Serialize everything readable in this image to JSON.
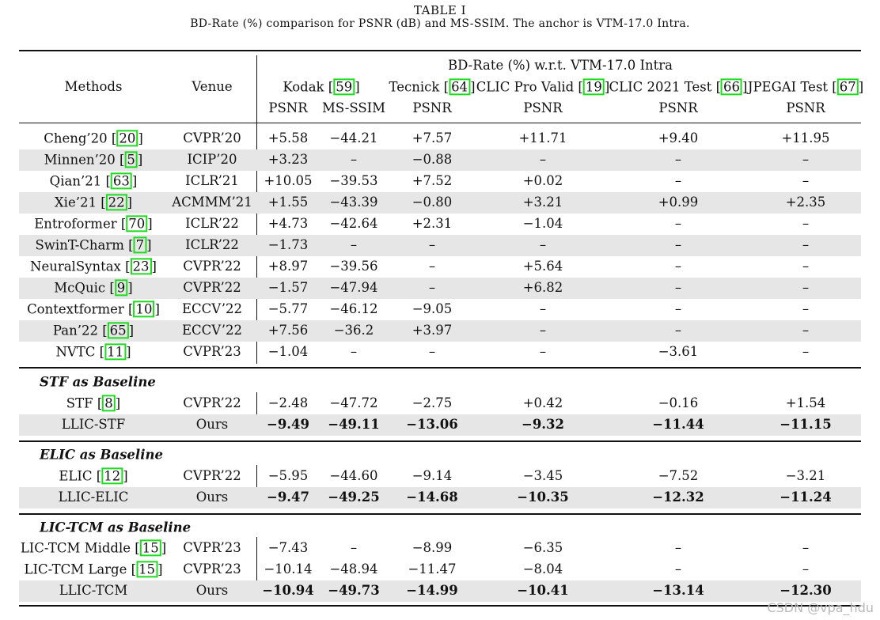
{
  "caption": {
    "title": "TABLE I",
    "subtitle": "BD-Rate (%) comparison for PSNR (dB) and MS-SSIM. The anchor is VTM-17.0 Intra."
  },
  "header": {
    "methods": "Methods",
    "venue": "Venue",
    "group_title": "BD-Rate (%) w.r.t. VTM-17.0 Intra",
    "datasets": [
      {
        "name": "Kodak",
        "ref": "59"
      },
      {
        "name": "Tecnick",
        "ref": "64"
      },
      {
        "name": "CLIC Pro Valid",
        "ref": "19"
      },
      {
        "name": "CLIC 2021 Test",
        "ref": "66"
      },
      {
        "name": "JPEGAI Test",
        "ref": "67"
      }
    ],
    "metrics": [
      "PSNR",
      "MS-SSIM",
      "PSNR",
      "PSNR",
      "PSNR",
      "PSNR"
    ]
  },
  "rows": [
    {
      "method": "Cheng’20",
      "ref": "20",
      "venue": "CVPR’20",
      "values": [
        "+5.58",
        "−44.21",
        "+7.57",
        "+11.71",
        "+9.40",
        "+11.95"
      ],
      "shaded": false
    },
    {
      "method": "Minnen’20",
      "ref": "5",
      "venue": "ICIP’20",
      "values": [
        "+3.23",
        "–",
        "−0.88",
        "–",
        "–",
        "–"
      ],
      "shaded": true
    },
    {
      "method": "Qian’21",
      "ref": "63",
      "venue": "ICLR’21",
      "values": [
        "+10.05",
        "−39.53",
        "+7.52",
        "+0.02",
        "–",
        "–"
      ],
      "shaded": false
    },
    {
      "method": "Xie’21",
      "ref": "22",
      "venue": "ACMMM’21",
      "values": [
        "+1.55",
        "−43.39",
        "−0.80",
        "+3.21",
        "+0.99",
        "+2.35"
      ],
      "shaded": true
    },
    {
      "method": "Entroformer",
      "ref": "70",
      "venue": "ICLR’22",
      "values": [
        "+4.73",
        "−42.64",
        "+2.31",
        "−1.04",
        "–",
        "–"
      ],
      "shaded": false
    },
    {
      "method": "SwinT-Charm",
      "ref": "7",
      "venue": "ICLR’22",
      "values": [
        "−1.73",
        "–",
        "–",
        "–",
        "–",
        "–"
      ],
      "shaded": true
    },
    {
      "method": "NeuralSyntax",
      "ref": "23",
      "venue": "CVPR’22",
      "values": [
        "+8.97",
        "−39.56",
        "–",
        "+5.64",
        "–",
        "–"
      ],
      "shaded": false
    },
    {
      "method": "McQuic",
      "ref": "9",
      "venue": "CVPR’22",
      "values": [
        "−1.57",
        "−47.94",
        "–",
        "+6.82",
        "–",
        "–"
      ],
      "shaded": true
    },
    {
      "method": "Contextformer",
      "ref": "10",
      "venue": "ECCV’22",
      "values": [
        "−5.77",
        "−46.12",
        "−9.05",
        "–",
        "–",
        "–"
      ],
      "shaded": false
    },
    {
      "method": "Pan’22",
      "ref": "65",
      "venue": "ECCV’22",
      "values": [
        "+7.56",
        "−36.2",
        "+3.97",
        "–",
        "–",
        "–"
      ],
      "shaded": true
    },
    {
      "method": "NVTC",
      "ref": "11",
      "venue": "CVPR’23",
      "values": [
        "−1.04",
        "–",
        "–",
        "–",
        "−3.61",
        "–"
      ],
      "shaded": false
    }
  ],
  "groups": [
    {
      "title": "STF as Baseline",
      "rows": [
        {
          "method": "STF",
          "ref": "8",
          "venue": "CVPR’22",
          "values": [
            "−2.48",
            "−47.72",
            "−2.75",
            "+0.42",
            "−0.16",
            "+1.54"
          ],
          "shaded": false,
          "bold": false
        },
        {
          "method": "LLIC-STF",
          "ref": "",
          "venue": "Ours",
          "values": [
            "−9.49",
            "−49.11",
            "−13.06",
            "−9.32",
            "−11.44",
            "−11.15"
          ],
          "shaded": true,
          "bold": true
        }
      ]
    },
    {
      "title": "ELIC as Baseline",
      "rows": [
        {
          "method": "ELIC",
          "ref": "12",
          "venue": "CVPR’22",
          "values": [
            "−5.95",
            "−44.60",
            "−9.14",
            "−3.45",
            "−7.52",
            "−3.21"
          ],
          "shaded": false,
          "bold": false
        },
        {
          "method": "LLIC-ELIC",
          "ref": "",
          "venue": "Ours",
          "values": [
            "−9.47",
            "−49.25",
            "−14.68",
            "−10.35",
            "−12.32",
            "−11.24"
          ],
          "shaded": true,
          "bold": true
        }
      ]
    },
    {
      "title": "LIC-TCM as Baseline",
      "rows": [
        {
          "method": "LIC-TCM Middle",
          "ref": "15",
          "venue": "CVPR’23",
          "values": [
            "−7.43",
            "–",
            "−8.99",
            "−6.35",
            "–",
            "–"
          ],
          "shaded": false,
          "bold": false
        },
        {
          "method": "LIC-TCM Large",
          "ref": "15",
          "venue": "CVPR’23",
          "values": [
            "−10.14",
            "−48.94",
            "−11.47",
            "−8.04",
            "–",
            "–"
          ],
          "shaded": false,
          "bold": false
        },
        {
          "method": "LLIC-TCM",
          "ref": "",
          "venue": "Ours",
          "values": [
            "−10.94",
            "−49.73",
            "−14.99",
            "−10.41",
            "−13.14",
            "−12.30"
          ],
          "shaded": true,
          "bold": true
        }
      ]
    }
  ],
  "watermark": "CSDN @vpa_hdu"
}
